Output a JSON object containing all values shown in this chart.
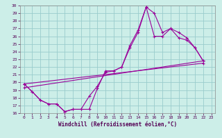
{
  "xlabel": "Windchill (Refroidissement éolien,°C)",
  "bg_color": "#cceee8",
  "line_color": "#990099",
  "grid_color": "#99cccc",
  "xlim": [
    -0.5,
    23.5
  ],
  "ylim": [
    16,
    30
  ],
  "xticks": [
    0,
    1,
    2,
    3,
    4,
    5,
    6,
    7,
    8,
    9,
    10,
    11,
    12,
    13,
    14,
    15,
    16,
    17,
    18,
    19,
    20,
    21,
    22,
    23
  ],
  "yticks": [
    16,
    17,
    18,
    19,
    20,
    21,
    22,
    23,
    24,
    25,
    26,
    27,
    28,
    29,
    30
  ],
  "series1": [
    [
      0,
      19.8
    ],
    [
      1,
      18.8
    ],
    [
      2,
      17.7
    ],
    [
      3,
      17.2
    ],
    [
      4,
      17.2
    ],
    [
      5,
      16.2
    ],
    [
      6,
      16.5
    ],
    [
      7,
      16.5
    ],
    [
      8,
      18.2
    ],
    [
      9,
      19.5
    ],
    [
      10,
      21.3
    ],
    [
      11,
      21.5
    ],
    [
      12,
      22.0
    ],
    [
      13,
      24.5
    ],
    [
      14,
      26.5
    ],
    [
      15,
      29.8
    ],
    [
      16,
      26.0
    ],
    [
      17,
      26.0
    ],
    [
      18,
      27.0
    ],
    [
      19,
      25.8
    ],
    [
      20,
      25.5
    ],
    [
      21,
      24.5
    ],
    [
      22,
      22.8
    ]
  ],
  "series2": [
    [
      0,
      19.8
    ],
    [
      1,
      18.8
    ],
    [
      2,
      17.7
    ],
    [
      3,
      17.2
    ],
    [
      4,
      17.2
    ],
    [
      5,
      16.2
    ],
    [
      6,
      16.5
    ],
    [
      7,
      16.5
    ],
    [
      8,
      16.5
    ],
    [
      9,
      19.2
    ],
    [
      10,
      21.5
    ],
    [
      11,
      21.5
    ],
    [
      12,
      22.0
    ],
    [
      13,
      24.8
    ],
    [
      14,
      26.8
    ],
    [
      15,
      29.8
    ],
    [
      16,
      29.0
    ],
    [
      17,
      26.5
    ],
    [
      18,
      27.0
    ],
    [
      19,
      26.5
    ],
    [
      20,
      25.8
    ],
    [
      21,
      24.5
    ],
    [
      22,
      22.8
    ]
  ],
  "series3": [
    [
      0,
      19.3
    ],
    [
      22,
      22.8
    ]
  ],
  "series4": [
    [
      0,
      19.8
    ],
    [
      22,
      22.5
    ]
  ]
}
